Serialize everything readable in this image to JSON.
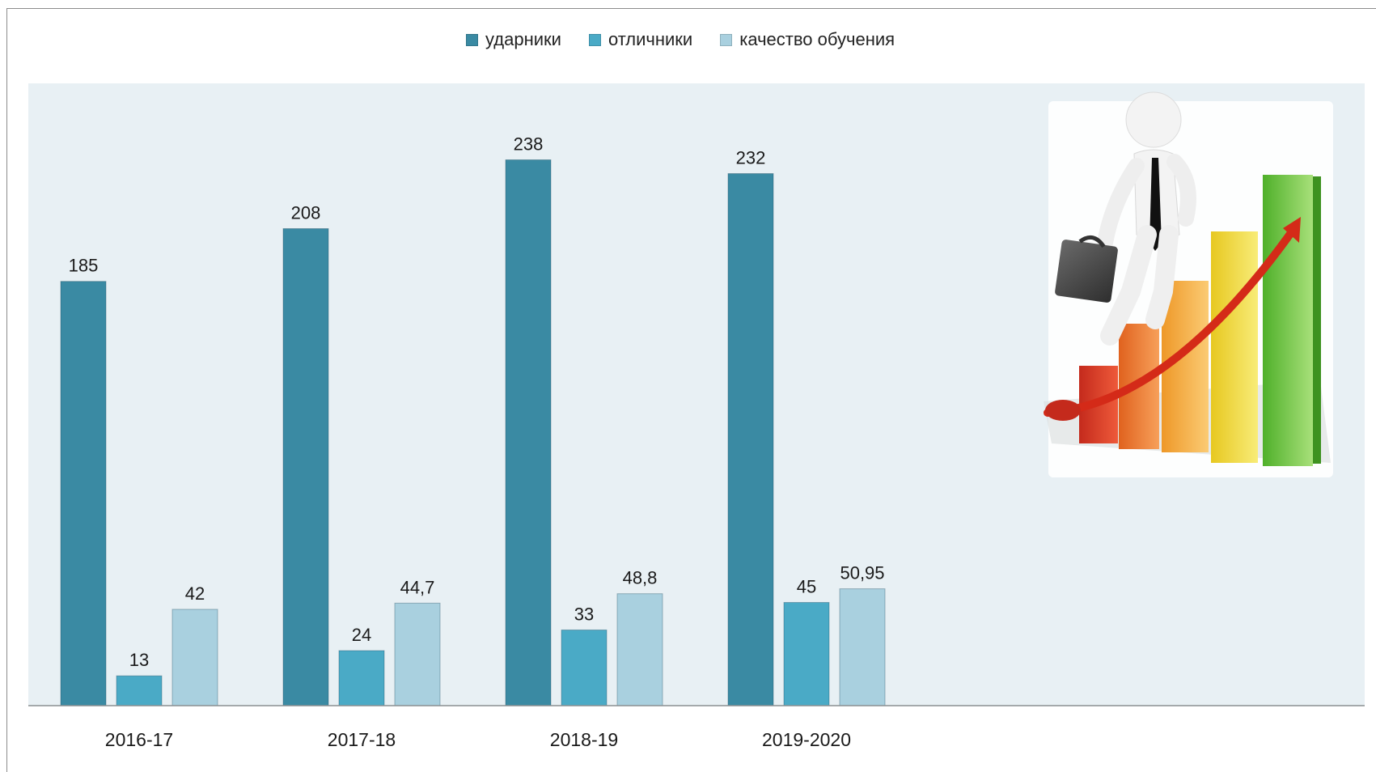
{
  "chart_data": {
    "type": "bar",
    "categories": [
      "2016-17",
      "2017-18",
      "2018-19",
      "2019-2020"
    ],
    "series": [
      {
        "name": "ударники",
        "values": [
          185,
          208,
          238,
          232
        ],
        "labels": [
          "185",
          "208",
          "238",
          "232"
        ],
        "color": "#3a8aa3"
      },
      {
        "name": "отличники",
        "values": [
          13,
          24,
          33,
          45
        ],
        "labels": [
          "13",
          "24",
          "33",
          "45"
        ],
        "color": "#4aaac6"
      },
      {
        "name": "качество обучения",
        "values": [
          42,
          44.7,
          48.8,
          50.95
        ],
        "labels": [
          "42",
          "44,7",
          "48,8",
          "50,95"
        ],
        "color": "#a9d0df"
      }
    ],
    "ylim": [
      0,
      250
    ],
    "grid": false,
    "legend_position": "top-center",
    "plot_background": "#e8f0f4",
    "decorative_image": "businessman-climbing-growth-bar-chart"
  }
}
